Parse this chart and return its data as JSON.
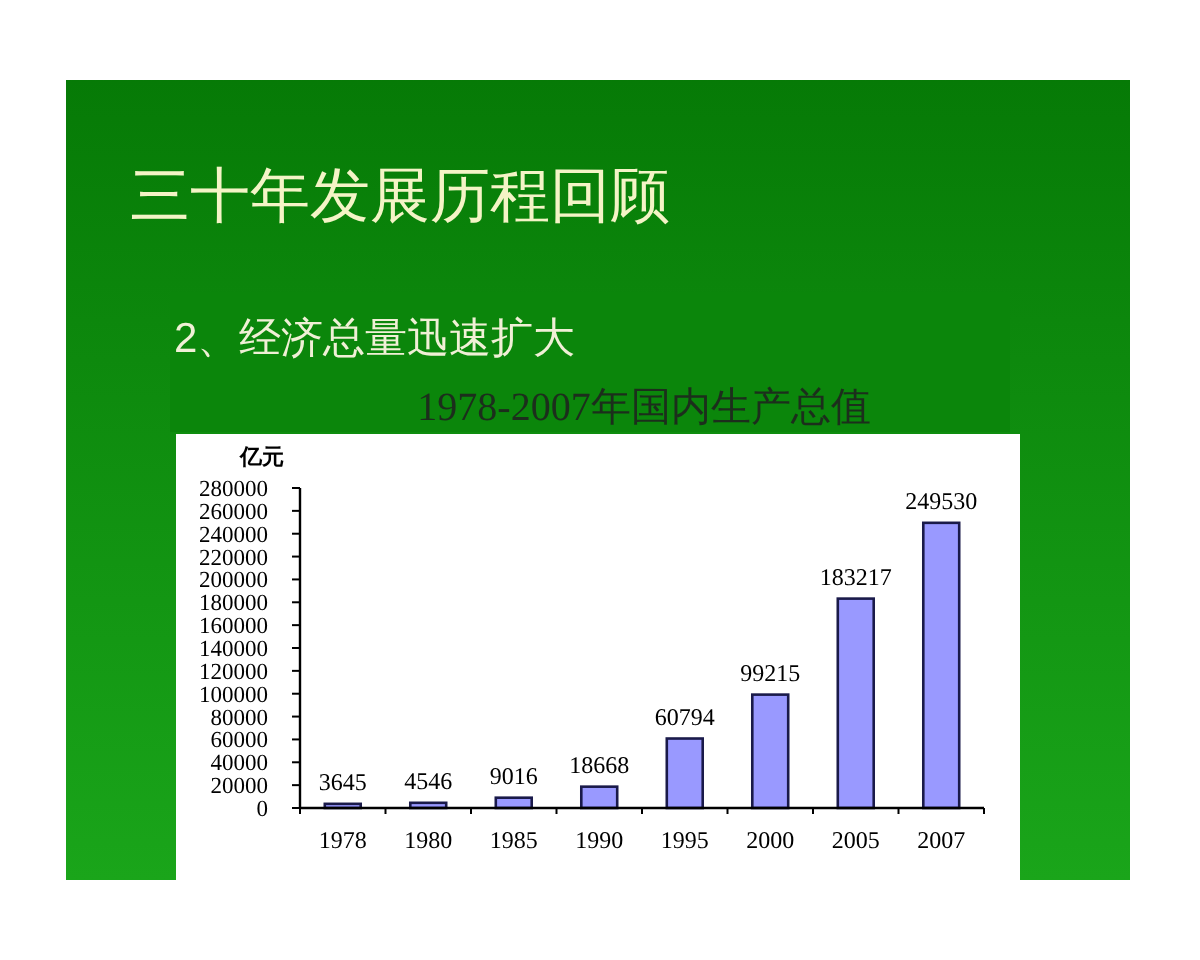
{
  "chart_data": {
    "type": "bar",
    "title": "三十年发展历程回顾",
    "subtitle": "2、经济总量迅速扩大",
    "annotations": [
      "1978-2007年国内生产总值"
    ],
    "ylabel": "亿元",
    "categories": [
      "1978",
      "1980",
      "1985",
      "1990",
      "1995",
      "2000",
      "2005",
      "2007"
    ],
    "values": [
      3645,
      4546,
      9016,
      18668,
      60794,
      99215,
      183217,
      249530
    ],
    "color": "#9999ff",
    "ylim": [
      0,
      280000
    ],
    "yticks": [
      0,
      20000,
      40000,
      60000,
      80000,
      100000,
      120000,
      140000,
      160000,
      180000,
      200000,
      220000,
      240000,
      260000,
      280000
    ],
    "data_labels": true,
    "grid": false
  }
}
